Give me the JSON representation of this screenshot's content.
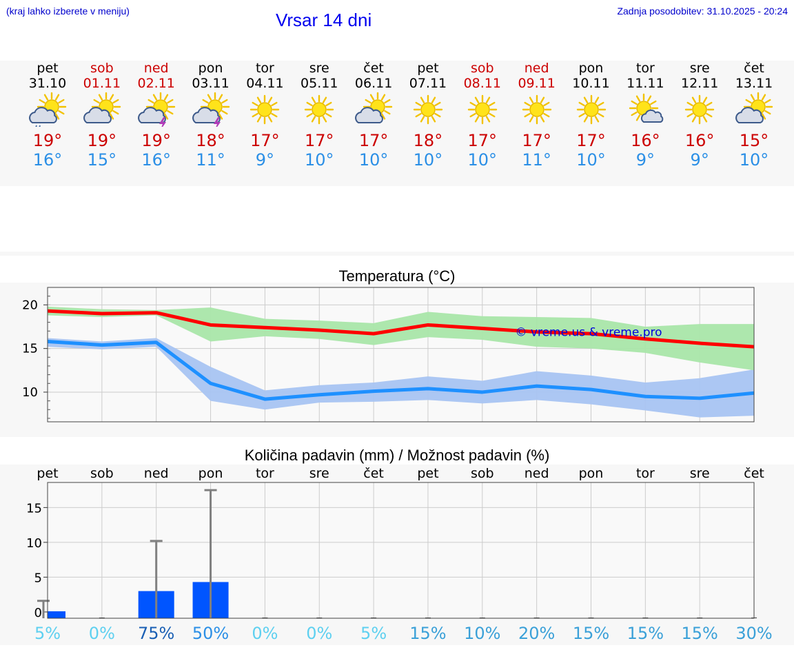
{
  "header": {
    "hint": "(kraj lahko izberete v meniju)",
    "title": "Vrsar 14 dni",
    "updated": "Zadnja posodobitev: 31.10.2025 - 20:24"
  },
  "colors": {
    "max": "#cc0000",
    "min": "#2b8fe6",
    "weekend": "#cc0000",
    "bar": "#0055ff"
  },
  "days": [
    {
      "wd": "pet",
      "date": "31.10",
      "weekend": false,
      "icon": "sun-cloud-rain-icon",
      "tmax": "19°",
      "tmin": "16°"
    },
    {
      "wd": "sob",
      "date": "01.11",
      "weekend": true,
      "icon": "sun-cloud-icon",
      "tmax": "19°",
      "tmin": "15°"
    },
    {
      "wd": "ned",
      "date": "02.11",
      "weekend": true,
      "icon": "sun-thunder-icon",
      "tmax": "19°",
      "tmin": "16°"
    },
    {
      "wd": "pon",
      "date": "03.11",
      "weekend": false,
      "icon": "sun-thunder-icon",
      "tmax": "18°",
      "tmin": "11°"
    },
    {
      "wd": "tor",
      "date": "04.11",
      "weekend": false,
      "icon": "sun-icon",
      "tmax": "17°",
      "tmin": "9°"
    },
    {
      "wd": "sre",
      "date": "05.11",
      "weekend": false,
      "icon": "sun-icon",
      "tmax": "17°",
      "tmin": "10°"
    },
    {
      "wd": "čet",
      "date": "06.11",
      "weekend": false,
      "icon": "sun-cloud-icon",
      "tmax": "17°",
      "tmin": "10°"
    },
    {
      "wd": "pet",
      "date": "07.11",
      "weekend": false,
      "icon": "sun-icon",
      "tmax": "18°",
      "tmin": "10°"
    },
    {
      "wd": "sob",
      "date": "08.11",
      "weekend": true,
      "icon": "sun-icon",
      "tmax": "17°",
      "tmin": "10°"
    },
    {
      "wd": "ned",
      "date": "09.11",
      "weekend": true,
      "icon": "sun-icon",
      "tmax": "17°",
      "tmin": "11°"
    },
    {
      "wd": "pon",
      "date": "10.11",
      "weekend": false,
      "icon": "sun-icon",
      "tmax": "17°",
      "tmin": "10°"
    },
    {
      "wd": "tor",
      "date": "11.11",
      "weekend": false,
      "icon": "sun-small-cloud-icon",
      "tmax": "16°",
      "tmin": "9°"
    },
    {
      "wd": "sre",
      "date": "12.11",
      "weekend": false,
      "icon": "sun-icon",
      "tmax": "16°",
      "tmin": "9°"
    },
    {
      "wd": "čet",
      "date": "13.11",
      "weekend": false,
      "icon": "sun-cloud-icon",
      "tmax": "15°",
      "tmin": "10°"
    }
  ],
  "chart_data": [
    {
      "type": "line",
      "title": "Temperatura (°C)",
      "watermark": "© vreme.us & vreme.pro",
      "xlabel": "",
      "ylabel": "",
      "ylim": [
        6.6,
        22
      ],
      "yticks": [
        10,
        15,
        20
      ],
      "grid": true,
      "x": [
        0,
        1,
        2,
        3,
        4,
        5,
        6,
        7,
        8,
        9,
        10,
        11,
        12,
        13
      ],
      "series": [
        {
          "name": "max",
          "color": "#ff0000",
          "values": [
            19.3,
            19.0,
            19.1,
            17.7,
            17.4,
            17.1,
            16.7,
            17.7,
            17.3,
            16.9,
            16.7,
            16.1,
            15.6,
            15.2
          ]
        },
        {
          "name": "min",
          "color": "#1e90ff",
          "values": [
            15.8,
            15.4,
            15.7,
            11.0,
            9.2,
            9.7,
            10.1,
            10.4,
            10.0,
            10.7,
            10.3,
            9.5,
            9.3,
            9.9
          ]
        }
      ],
      "bands": [
        {
          "name": "max-range",
          "color": "#a9e6a9",
          "lower": [
            18.8,
            18.6,
            18.8,
            15.8,
            16.4,
            16.1,
            15.4,
            16.3,
            16.0,
            15.2,
            15.0,
            14.5,
            13.4,
            12.5
          ],
          "upper": [
            19.8,
            19.5,
            19.4,
            19.7,
            18.4,
            18.2,
            17.9,
            19.2,
            18.7,
            18.6,
            18.5,
            17.5,
            17.8,
            17.8
          ]
        },
        {
          "name": "min-range",
          "color": "#a8c4f2",
          "lower": [
            15.2,
            14.9,
            15.2,
            9.0,
            8.0,
            8.8,
            8.9,
            9.1,
            8.7,
            9.1,
            8.6,
            7.9,
            7.1,
            7.3
          ],
          "upper": [
            16.2,
            15.8,
            16.2,
            12.9,
            10.2,
            10.8,
            11.1,
            11.8,
            11.3,
            12.4,
            11.9,
            11.1,
            11.6,
            12.6
          ]
        }
      ]
    },
    {
      "type": "bar",
      "title": "Količina padavin (mm) / Možnost padavin (%)",
      "categories": [
        "pet",
        "sob",
        "ned",
        "pon",
        "tor",
        "sre",
        "čet",
        "pet",
        "sob",
        "ned",
        "pon",
        "tor",
        "sre",
        "čet"
      ],
      "values": [
        0.1,
        0,
        3.0,
        4.3,
        0,
        0,
        0,
        0,
        0,
        0,
        0,
        0,
        0,
        0
      ],
      "error_max": [
        1.6,
        0,
        10.2,
        17.5,
        0,
        0,
        0,
        0,
        0,
        0,
        0,
        0,
        0,
        0
      ],
      "probability": [
        "5%",
        "0%",
        "75%",
        "50%",
        "0%",
        "0%",
        "5%",
        "15%",
        "10%",
        "20%",
        "15%",
        "15%",
        "15%",
        "30%"
      ],
      "probability_colors": [
        "#5ed0f0",
        "#5ed0f0",
        "#1a5fb4",
        "#2b8fe6",
        "#5ed0f0",
        "#5ed0f0",
        "#5ed0f0",
        "#3aa0d8",
        "#3aa0d8",
        "#3aa0d8",
        "#3aa0d8",
        "#3aa0d8",
        "#3aa0d8",
        "#3aa0d8"
      ],
      "ylim": [
        -0.9,
        18.6
      ],
      "yticks": [
        0,
        5,
        10,
        15
      ],
      "grid": true
    }
  ]
}
